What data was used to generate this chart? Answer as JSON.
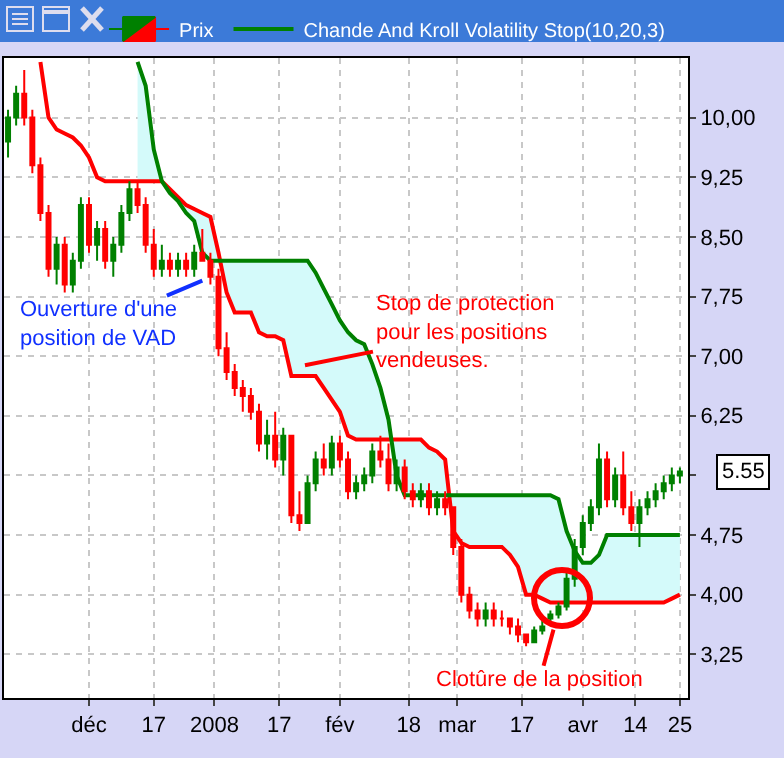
{
  "chart_data": {
    "type": "candlestick",
    "x": [
      "2007-11-11",
      "2007-11-13",
      "2007-11-15",
      "2007-11-17",
      "2007-11-19",
      "2007-11-21",
      "2007-11-23",
      "2007-11-25",
      "2007-11-27",
      "2007-11-29",
      "2007-12-01",
      "2007-12-03",
      "2007-12-05",
      "2007-12-07",
      "2007-12-09",
      "2007-12-11",
      "2007-12-13",
      "2007-12-15",
      "2007-12-17",
      "2007-12-19",
      "2007-12-21",
      "2007-12-23",
      "2007-12-25",
      "2007-12-27",
      "2007-12-29",
      "2007-12-31",
      "2008-01-02",
      "2008-01-04",
      "2008-01-06",
      "2008-01-08",
      "2008-01-10",
      "2008-01-12",
      "2008-01-14",
      "2008-01-16",
      "2008-01-18",
      "2008-01-20",
      "2008-01-22",
      "2008-01-24",
      "2008-01-26",
      "2008-01-28",
      "2008-01-30",
      "2008-02-01",
      "2008-02-03",
      "2008-02-05",
      "2008-02-07",
      "2008-02-09",
      "2008-02-11",
      "2008-02-13",
      "2008-02-15",
      "2008-02-17",
      "2008-02-19",
      "2008-02-21",
      "2008-02-23",
      "2008-02-25",
      "2008-02-27",
      "2008-02-29",
      "2008-03-02",
      "2008-03-04",
      "2008-03-06",
      "2008-03-08",
      "2008-03-10",
      "2008-03-12",
      "2008-03-14",
      "2008-03-16",
      "2008-03-18",
      "2008-03-20",
      "2008-03-22",
      "2008-03-24",
      "2008-03-26",
      "2008-03-28",
      "2008-03-30",
      "2008-04-01",
      "2008-04-03",
      "2008-04-05",
      "2008-04-07",
      "2008-04-09",
      "2008-04-11",
      "2008-04-13",
      "2008-04-15",
      "2008-04-17",
      "2008-04-19",
      "2008-04-21",
      "2008-04-23",
      "2008-04-25"
    ],
    "series": [
      {
        "type": "line",
        "color": "#ff0000",
        "values": [
          null,
          null,
          null,
          null,
          10.7,
          10.0,
          9.85,
          9.8,
          9.75,
          9.65,
          9.5,
          9.25,
          9.2,
          9.2,
          9.2,
          9.2,
          9.2,
          9.2,
          9.2,
          9.2,
          9.1,
          9.0,
          8.9,
          8.85,
          8.8,
          8.75,
          8.3,
          7.8,
          7.55,
          7.55,
          7.55,
          7.3,
          7.25,
          7.25,
          7.2,
          6.75,
          6.75,
          6.75,
          6.75,
          6.6,
          6.45,
          6.3,
          6.0,
          5.95,
          5.95,
          5.95,
          5.95,
          5.95,
          5.95,
          5.95,
          5.95,
          5.95,
          5.85,
          5.8,
          5.7,
          4.8,
          4.65,
          4.6,
          4.6,
          4.6,
          4.6,
          4.6,
          4.5,
          4.35,
          4.0,
          4.0,
          3.95,
          3.9,
          3.9,
          3.9,
          3.9,
          3.9,
          3.9,
          3.9,
          3.9,
          3.9,
          3.9,
          3.9,
          3.9,
          3.9,
          3.9,
          3.9,
          3.95,
          4.0
        ]
      },
      {
        "type": "line",
        "name": "Chande And Kroll Volatility Stop(10,20,3)",
        "color": "#008000",
        "values": [
          null,
          null,
          null,
          null,
          null,
          null,
          null,
          null,
          null,
          null,
          null,
          null,
          null,
          null,
          null,
          null,
          10.7,
          10.4,
          9.6,
          9.2,
          9.05,
          8.95,
          8.8,
          8.7,
          8.3,
          8.2,
          8.2,
          8.2,
          8.2,
          8.2,
          8.2,
          8.2,
          8.2,
          8.2,
          8.2,
          8.2,
          8.2,
          8.2,
          8.05,
          7.85,
          7.65,
          7.45,
          7.3,
          7.2,
          7.15,
          6.9,
          6.6,
          6.2,
          5.5,
          5.25,
          5.25,
          5.25,
          5.25,
          5.25,
          5.25,
          5.25,
          5.25,
          5.25,
          5.25,
          5.25,
          5.25,
          5.25,
          5.25,
          5.25,
          5.25,
          5.25,
          5.25,
          5.25,
          5.2,
          4.8,
          4.55,
          4.4,
          4.4,
          4.5,
          4.75,
          4.75,
          4.75,
          4.75,
          4.75,
          4.75,
          4.75,
          4.75,
          4.75,
          4.75
        ],
        "lower": [
          null,
          null,
          null,
          null,
          null,
          null,
          null,
          null,
          null,
          null,
          null,
          null,
          null,
          null,
          null,
          null,
          9.2,
          9.2,
          9.2,
          9.2,
          9.1,
          9.0,
          8.9,
          8.85,
          8.8,
          8.75,
          8.3,
          7.8,
          7.55,
          7.55,
          7.55,
          7.3,
          7.25,
          7.25,
          7.2,
          6.75,
          6.75,
          6.75,
          6.75,
          6.6,
          6.45,
          6.3,
          6.0,
          5.95,
          5.95,
          5.95,
          5.95,
          5.95,
          5.95,
          5.95,
          5.95,
          5.95,
          5.85,
          5.8,
          5.7,
          4.8,
          4.65,
          4.6,
          4.6,
          4.6,
          4.6,
          4.6,
          4.5,
          4.35,
          4.0,
          4.0,
          3.95,
          3.9,
          3.9,
          3.9,
          3.9,
          3.9,
          3.9,
          3.9,
          3.9,
          3.9,
          3.9,
          3.9,
          3.9,
          3.9,
          3.9,
          3.9,
          3.95,
          4.0
        ],
        "upper": [
          null,
          null,
          null,
          null,
          null,
          null,
          null,
          null,
          null,
          null,
          null,
          null,
          null,
          null,
          null,
          null,
          10.7,
          10.4,
          9.6,
          9.2,
          9.05,
          8.95,
          8.8,
          8.7,
          8.3,
          8.2,
          8.2,
          8.2,
          8.2,
          8.2,
          8.2,
          8.2,
          8.2,
          8.2,
          8.2,
          8.2,
          8.2,
          8.2,
          8.05,
          7.85,
          7.65,
          7.45,
          7.3,
          7.2,
          7.15,
          6.9,
          6.6,
          6.2,
          5.5,
          5.25,
          5.25,
          5.25,
          5.25,
          5.25,
          5.25,
          5.25,
          5.25,
          5.25,
          5.25,
          5.25,
          5.25,
          5.25,
          5.25,
          5.25,
          5.25,
          5.25,
          5.25,
          5.25,
          5.2,
          4.8,
          4.55,
          4.4,
          4.4,
          4.5,
          4.75,
          4.75,
          4.75,
          4.75,
          4.75,
          4.75,
          4.75,
          4.75,
          4.75,
          4.75
        ]
      },
      {
        "name": "Prix",
        "colors": [
          "#008000",
          "#008000",
          "#ff0000",
          "#ff0000",
          "#ff0000",
          "#ff0000",
          "#008000",
          "#ff0000",
          "#008000",
          "#008000",
          "#ff0000",
          "#008000",
          "#ff0000",
          "#008000",
          "#008000",
          "#008000",
          "#ff0000",
          "#ff0000",
          "#ff0000",
          "#008000",
          "#ff0000",
          "#008000",
          "#ff0000",
          "#008000",
          "#ff0000",
          "#ff0000",
          "#ff0000",
          "#ff0000",
          "#ff0000",
          "#ff0000",
          "#ff0000",
          "#ff0000",
          "#008000",
          "#ff0000",
          "#008000",
          "#ff0000",
          "#ff0000",
          "#008000",
          "#008000",
          "#ff0000",
          "#008000",
          "#ff0000",
          "#ff0000",
          "#008000",
          "#008000",
          "#008000",
          "#ff0000",
          "#ff0000",
          "#008000",
          "#ff0000",
          "#ff0000",
          "#008000",
          "#ff0000",
          "#008000",
          "#ff0000",
          "#ff0000",
          "#ff0000",
          "#ff0000",
          "#ff0000",
          "#008000",
          "#ff0000",
          "#ff0000",
          "#ff0000",
          "#ff0000",
          "#ff0000",
          "#008000",
          "#008000",
          "#008000",
          "#008000",
          "#008000",
          "#008000",
          "#008000",
          "#008000",
          "#008000",
          "#ff0000",
          "#008000",
          "#ff0000",
          "#ff0000",
          "#008000",
          "#008000",
          "#008000",
          "#008000",
          "#008000",
          "#008000"
        ],
        "ohlc": [
          [
            9.7,
            10.1,
            9.5,
            10.0
          ],
          [
            10.0,
            10.4,
            9.9,
            10.3
          ],
          [
            10.3,
            10.6,
            9.9,
            10.0
          ],
          [
            10.0,
            10.1,
            9.3,
            9.4
          ],
          [
            9.4,
            9.5,
            8.7,
            8.8
          ],
          [
            8.8,
            8.9,
            8.0,
            8.1
          ],
          [
            8.1,
            8.5,
            7.9,
            8.4
          ],
          [
            8.4,
            8.5,
            7.8,
            7.9
          ],
          [
            7.9,
            8.3,
            7.8,
            8.2
          ],
          [
            8.2,
            9.0,
            8.1,
            8.9
          ],
          [
            8.9,
            9.0,
            8.3,
            8.4
          ],
          [
            8.4,
            8.7,
            8.2,
            8.6
          ],
          [
            8.6,
            8.7,
            8.1,
            8.2
          ],
          [
            8.2,
            8.5,
            8.0,
            8.4
          ],
          [
            8.4,
            8.9,
            8.3,
            8.8
          ],
          [
            8.8,
            9.2,
            8.7,
            9.1
          ],
          [
            9.1,
            9.2,
            8.8,
            8.9
          ],
          [
            8.9,
            9.0,
            8.3,
            8.4
          ],
          [
            8.4,
            8.6,
            8.0,
            8.1
          ],
          [
            8.1,
            8.4,
            8.0,
            8.2
          ],
          [
            8.2,
            8.3,
            8.0,
            8.1
          ],
          [
            8.1,
            8.3,
            8.0,
            8.2
          ],
          [
            8.2,
            8.3,
            8.0,
            8.1
          ],
          [
            8.1,
            8.4,
            8.0,
            8.3
          ],
          [
            8.3,
            8.6,
            8.2,
            8.2
          ],
          [
            8.2,
            8.3,
            7.9,
            8.0
          ],
          [
            8.0,
            8.1,
            7.0,
            7.1
          ],
          [
            7.1,
            7.3,
            6.7,
            6.8
          ],
          [
            6.8,
            6.9,
            6.5,
            6.6
          ],
          [
            6.6,
            6.7,
            6.3,
            6.5
          ],
          [
            6.5,
            6.6,
            6.2,
            6.3
          ],
          [
            6.3,
            6.4,
            5.8,
            5.9
          ],
          [
            5.9,
            6.2,
            5.7,
            6.0
          ],
          [
            6.0,
            6.3,
            5.6,
            5.7
          ],
          [
            5.7,
            6.1,
            5.5,
            6.0
          ],
          [
            6.0,
            6.0,
            4.9,
            5.0
          ],
          [
            5.0,
            5.3,
            4.8,
            4.9
          ],
          [
            4.9,
            5.5,
            4.9,
            5.4
          ],
          [
            5.4,
            5.8,
            5.3,
            5.7
          ],
          [
            5.7,
            5.9,
            5.5,
            5.6
          ],
          [
            5.6,
            6.0,
            5.5,
            5.9
          ],
          [
            5.9,
            6.0,
            5.6,
            5.7
          ],
          [
            5.7,
            5.8,
            5.2,
            5.3
          ],
          [
            5.3,
            5.5,
            5.2,
            5.4
          ],
          [
            5.4,
            5.6,
            5.3,
            5.5
          ],
          [
            5.5,
            5.9,
            5.4,
            5.8
          ],
          [
            5.8,
            6.0,
            5.6,
            5.7
          ],
          [
            5.7,
            5.9,
            5.3,
            5.4
          ],
          [
            5.4,
            5.7,
            5.3,
            5.6
          ],
          [
            5.6,
            5.7,
            5.2,
            5.3
          ],
          [
            5.3,
            5.4,
            5.1,
            5.2
          ],
          [
            5.2,
            5.4,
            5.1,
            5.3
          ],
          [
            5.3,
            5.4,
            5.0,
            5.1
          ],
          [
            5.1,
            5.3,
            5.0,
            5.2
          ],
          [
            5.2,
            5.3,
            5.0,
            5.1
          ],
          [
            5.1,
            5.1,
            4.5,
            4.6
          ],
          [
            4.6,
            4.7,
            3.9,
            4.0
          ],
          [
            4.0,
            4.1,
            3.7,
            3.8
          ],
          [
            3.8,
            3.9,
            3.6,
            3.7
          ],
          [
            3.7,
            3.9,
            3.6,
            3.8
          ],
          [
            3.8,
            3.9,
            3.6,
            3.7
          ],
          [
            3.7,
            3.8,
            3.6,
            3.7
          ],
          [
            3.7,
            3.7,
            3.5,
            3.6
          ],
          [
            3.6,
            3.7,
            3.4,
            3.5
          ],
          [
            3.5,
            3.5,
            3.35,
            3.4
          ],
          [
            3.4,
            3.6,
            3.4,
            3.55
          ],
          [
            3.55,
            3.7,
            3.5,
            3.6
          ],
          [
            3.7,
            3.8,
            3.65,
            3.75
          ],
          [
            3.75,
            3.9,
            3.7,
            3.85
          ],
          [
            3.85,
            4.3,
            3.8,
            4.2
          ],
          [
            4.2,
            4.7,
            4.1,
            4.6
          ],
          [
            4.6,
            5.0,
            4.5,
            4.9
          ],
          [
            4.9,
            5.2,
            4.8,
            5.1
          ],
          [
            5.1,
            5.9,
            5.0,
            5.7
          ],
          [
            5.7,
            5.8,
            5.1,
            5.2
          ],
          [
            5.2,
            5.6,
            5.1,
            5.5
          ],
          [
            5.5,
            5.8,
            5.0,
            5.1
          ],
          [
            5.1,
            5.3,
            4.8,
            4.9
          ],
          [
            4.9,
            5.2,
            4.6,
            5.1
          ],
          [
            5.1,
            5.3,
            5.0,
            5.2
          ],
          [
            5.2,
            5.4,
            5.1,
            5.3
          ],
          [
            5.3,
            5.5,
            5.2,
            5.4
          ],
          [
            5.4,
            5.6,
            5.3,
            5.5
          ],
          [
            5.5,
            5.6,
            5.4,
            5.55
          ]
        ]
      }
    ],
    "xlim": [
      "2007-11-10",
      "2008-04-27"
    ],
    "xticks": [
      {
        "value": "2007-12-01",
        "label": "déc"
      },
      {
        "value": "2007-12-17",
        "label": "17"
      },
      {
        "value": "2008-01-01",
        "label": "2008"
      },
      {
        "value": "2008-01-17",
        "label": "17"
      },
      {
        "value": "2008-02-01",
        "label": "fév"
      },
      {
        "value": "2008-02-18",
        "label": "18"
      },
      {
        "value": "2008-03-01",
        "label": "mar"
      },
      {
        "value": "2008-03-17",
        "label": "17"
      },
      {
        "value": "2008-04-01",
        "label": "avr"
      },
      {
        "value": "2008-04-14",
        "label": "14"
      },
      {
        "value": "2008-04-25",
        "label": "25"
      }
    ],
    "ylim": [
      2.7,
      10.75
    ],
    "yticks": [
      {
        "value": 3.25,
        "label": "3,25"
      },
      {
        "value": 4.0,
        "label": "4,00"
      },
      {
        "value": 4.75,
        "label": "4,75"
      },
      {
        "value": 5.5,
        "label": null
      },
      {
        "value": 6.25,
        "label": "6,25"
      },
      {
        "value": 7.0,
        "label": "7,00"
      },
      {
        "value": 7.75,
        "label": "7,75"
      },
      {
        "value": 8.5,
        "label": "8,50"
      },
      {
        "value": 9.25,
        "label": "9,25"
      },
      {
        "value": 10.0,
        "label": "10,00"
      }
    ],
    "grid": true,
    "legend": "top",
    "annotations": [
      {
        "text": "Ouverture d'une\nposition de VAD",
        "x": "2007-12-29",
        "y": 7.95
      },
      "Stop de protection\npour les positions\nvendeuses.",
      "Clotûre de la position",
      {
        "text": "5.55",
        "x": "2008-04-25",
        "y": 5.55
      }
    ]
  }
}
